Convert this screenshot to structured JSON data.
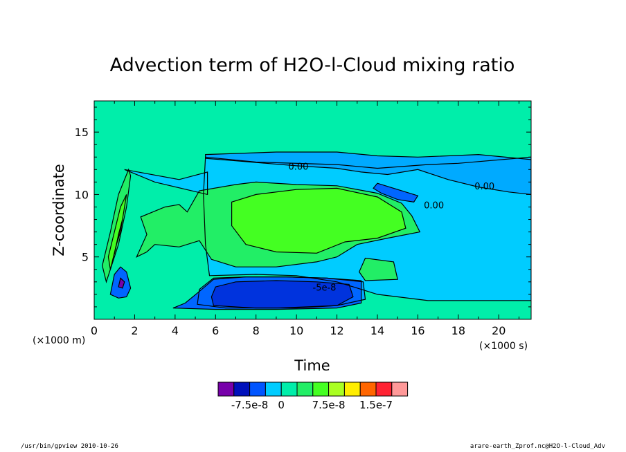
{
  "chart_data": {
    "type": "contour",
    "title": "Advection term of H2O-l-Cloud mixing ratio",
    "xlabel": "Time",
    "ylabel": "Z-coordinate",
    "x_unit": "(×1000 s)",
    "y_unit": "(×1000 m)",
    "xlim": [
      0,
      21.6
    ],
    "ylim": [
      0,
      17.5
    ],
    "xticks": [
      0,
      2,
      4,
      6,
      8,
      10,
      12,
      14,
      16,
      18,
      20
    ],
    "yticks": [
      5,
      10,
      15
    ],
    "grid": false,
    "background_level_color": "#00eeaa",
    "contour_labels": [
      {
        "text": "0.00",
        "x": 9.6,
        "y": 12.0
      },
      {
        "text": "0.00",
        "x": 18.8,
        "y": 10.4
      },
      {
        "text": "0.00",
        "x": 16.3,
        "y": 8.9
      },
      {
        "text": "-5e-8",
        "x": 10.8,
        "y": 2.3
      }
    ],
    "regions": [
      {
        "level": "0",
        "color": "#00ccff",
        "polygon": [
          [
            5.5,
            13
          ],
          [
            8,
            12.6
          ],
          [
            12,
            12.4
          ],
          [
            14,
            12.1
          ],
          [
            16.5,
            12.4
          ],
          [
            18,
            12.5
          ],
          [
            21.6,
            13
          ],
          [
            21.6,
            1.5
          ],
          [
            16.5,
            1.5
          ],
          [
            14,
            2
          ],
          [
            12,
            3
          ],
          [
            10,
            3.5
          ],
          [
            8,
            3.6
          ],
          [
            5.7,
            3.5
          ],
          [
            5.5,
            6
          ],
          [
            5.4,
            10
          ],
          [
            5.5,
            13
          ]
        ]
      },
      {
        "level": "0",
        "color": "#00ccff",
        "polygon": [
          [
            1.5,
            12
          ],
          [
            4.2,
            11.2
          ],
          [
            5.6,
            11.8
          ],
          [
            5.6,
            10
          ],
          [
            3,
            11
          ],
          [
            1.5,
            12
          ]
        ]
      },
      {
        "level": "-2.5e-8",
        "color": "#00aaff",
        "polygon": [
          [
            5.5,
            12.9
          ],
          [
            7,
            12.7
          ],
          [
            8.5,
            12.5
          ],
          [
            10,
            12.3
          ],
          [
            12,
            12.1
          ],
          [
            13.2,
            11.8
          ],
          [
            14.5,
            11.6
          ],
          [
            16,
            12.0
          ],
          [
            17.5,
            11.2
          ],
          [
            19,
            10.6
          ],
          [
            20.5,
            10.2
          ],
          [
            21.6,
            10.0
          ],
          [
            21.6,
            12.8
          ],
          [
            19,
            13.2
          ],
          [
            16,
            13.0
          ],
          [
            14,
            13.1
          ],
          [
            12,
            13.4
          ],
          [
            9,
            13.4
          ],
          [
            5.5,
            13.2
          ]
        ]
      },
      {
        "level": "-5e-8",
        "color": "#0066ff",
        "polygon": [
          [
            14,
            10.9
          ],
          [
            15,
            10.4
          ],
          [
            16,
            9.9
          ],
          [
            15.8,
            9.4
          ],
          [
            15,
            9.6
          ],
          [
            14.2,
            10.1
          ],
          [
            13.8,
            10.5
          ]
        ]
      },
      {
        "level": "-2.5e-8",
        "color": "#00aaff",
        "polygon": [
          [
            5.1,
            1.2
          ],
          [
            6.5,
            0.9
          ],
          [
            9,
            0.9
          ],
          [
            12,
            1.1
          ],
          [
            13.4,
            1.6
          ],
          [
            13.3,
            3.0
          ],
          [
            11.5,
            3.3
          ],
          [
            9.5,
            3.4
          ],
          [
            7.5,
            3.4
          ],
          [
            5.9,
            3.3
          ],
          [
            5.2,
            2.4
          ]
        ]
      },
      {
        "level": "-5e-8",
        "color": "#0066ff",
        "polygon": [
          [
            3.9,
            0.9
          ],
          [
            6,
            0.8
          ],
          [
            9,
            0.8
          ],
          [
            12,
            0.9
          ],
          [
            13.2,
            1.3
          ],
          [
            13.2,
            3.1
          ],
          [
            11.5,
            3.3
          ],
          [
            9.5,
            3.4
          ],
          [
            7.5,
            3.4
          ],
          [
            5.9,
            3.2
          ],
          [
            5.1,
            2.1
          ],
          [
            4.5,
            1.3
          ]
        ]
      },
      {
        "level": "-7.5e-8",
        "color": "#0033dd",
        "polygon": [
          [
            5.9,
            1.1
          ],
          [
            8,
            0.9
          ],
          [
            10,
            0.9
          ],
          [
            12,
            1.1
          ],
          [
            12.8,
            1.8
          ],
          [
            12.6,
            2.8
          ],
          [
            11,
            3.0
          ],
          [
            9,
            3.1
          ],
          [
            7,
            3.0
          ],
          [
            6,
            2.6
          ],
          [
            5.8,
            1.8
          ]
        ]
      },
      {
        "level": "2.5e-8",
        "color": "#22ee66",
        "polygon": [
          [
            2.1,
            5
          ],
          [
            2.6,
            6.8
          ],
          [
            2.3,
            8.2
          ],
          [
            3.5,
            9
          ],
          [
            4.2,
            9.2
          ],
          [
            4.6,
            8.6
          ],
          [
            5.2,
            10.3
          ],
          [
            7,
            10.8
          ],
          [
            8,
            11
          ],
          [
            10,
            10.8
          ],
          [
            12,
            10.7
          ],
          [
            14,
            10.1
          ],
          [
            15.2,
            9.3
          ],
          [
            15.7,
            8.3
          ],
          [
            16.1,
            7.0
          ],
          [
            14.5,
            6.5
          ],
          [
            13,
            6.0
          ],
          [
            12,
            5.0
          ],
          [
            11,
            4.6
          ],
          [
            9,
            4.2
          ],
          [
            7,
            4.2
          ],
          [
            5.8,
            4.8
          ],
          [
            5.2,
            6.3
          ],
          [
            4.2,
            5.8
          ],
          [
            3,
            6
          ],
          [
            2.6,
            5.4
          ]
        ]
      },
      {
        "level": "5e-8",
        "color": "#44ff22",
        "polygon": [
          [
            6.8,
            9.4
          ],
          [
            8,
            10
          ],
          [
            10,
            10.4
          ],
          [
            12,
            10.5
          ],
          [
            14,
            9.8
          ],
          [
            15.2,
            8.6
          ],
          [
            15.4,
            7.3
          ],
          [
            14,
            6.5
          ],
          [
            12.4,
            6.2
          ],
          [
            11,
            5.3
          ],
          [
            9,
            5.4
          ],
          [
            7.5,
            6.0
          ],
          [
            6.8,
            7.5
          ]
        ]
      },
      {
        "level": "2.5e-8",
        "color": "#22ee66",
        "polygon": [
          [
            0.6,
            3
          ],
          [
            1.2,
            6
          ],
          [
            1.6,
            9
          ],
          [
            1.8,
            11.5
          ],
          [
            1.7,
            12
          ],
          [
            1.2,
            10
          ],
          [
            0.8,
            7
          ],
          [
            0.4,
            4.3
          ]
        ]
      },
      {
        "level": "5e-8",
        "color": "#44ff22",
        "polygon": [
          [
            0.8,
            4
          ],
          [
            1.1,
            6
          ],
          [
            1.4,
            8
          ],
          [
            1.6,
            10
          ],
          [
            1.3,
            9
          ],
          [
            1,
            7
          ],
          [
            0.7,
            5
          ]
        ]
      },
      {
        "level": "7.5e-8",
        "color": "#aaff22",
        "polygon": [
          [
            1.0,
            5.2
          ],
          [
            1.2,
            6.8
          ],
          [
            1.4,
            8
          ],
          [
            1.3,
            7
          ],
          [
            1.1,
            6
          ]
        ]
      },
      {
        "level": "-5e-8",
        "color": "#0066ff",
        "polygon": [
          [
            0.8,
            2
          ],
          [
            1.2,
            1.7
          ],
          [
            1.6,
            1.8
          ],
          [
            1.8,
            2.5
          ],
          [
            1.6,
            3.8
          ],
          [
            1.3,
            4.2
          ],
          [
            1.0,
            3.6
          ]
        ]
      },
      {
        "level": "-1e-7",
        "color": "#7700aa",
        "polygon": [
          [
            1.2,
            2.6
          ],
          [
            1.4,
            2.5
          ],
          [
            1.5,
            3.0
          ],
          [
            1.3,
            3.3
          ]
        ]
      },
      {
        "level": "2.5e-8",
        "color": "#22ee66",
        "polygon": [
          [
            13.4,
            3.1
          ],
          [
            15,
            3.2
          ],
          [
            14.8,
            4.6
          ],
          [
            13.4,
            4.9
          ],
          [
            13.1,
            3.8
          ]
        ]
      }
    ],
    "colorbar": {
      "colors": [
        "#7700aa",
        "#0011bb",
        "#0055ff",
        "#00ccff",
        "#00eeaa",
        "#22ee66",
        "#44ff22",
        "#aaff22",
        "#ffee00",
        "#ff6600",
        "#ff2233",
        "#ff9999"
      ],
      "labels": [
        "-7.5e-8",
        "0",
        "7.5e-8",
        "1.5e-7"
      ]
    },
    "footer_left": "/usr/bin/gpview   2010-10-26",
    "footer_right": "arare-earth_Zprof.nc@H2O-l-Cloud_Adv"
  }
}
